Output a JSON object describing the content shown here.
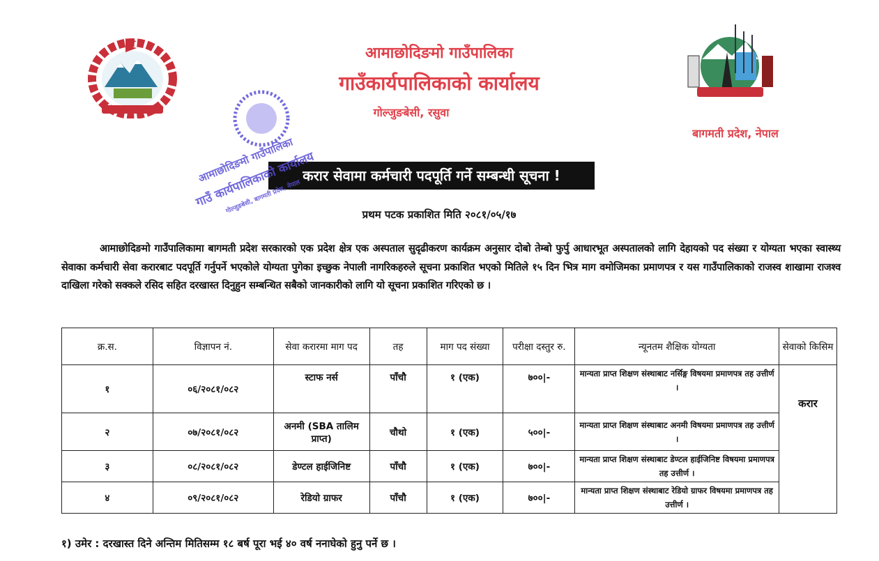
{
  "header": {
    "org_name": "आमाछोदिङमो गाउँपालिका",
    "office": "गाउँकार्यपालिकाको कार्यालय",
    "address": "गोल्जुङबेसी, रसुवा",
    "province": "बागमती प्रदेश, नेपाल",
    "colors": {
      "header_text": "#e0404a",
      "stamp": "#5a4fd6"
    }
  },
  "logos": {
    "left": "nepal-emblem",
    "right": "municipality-logo",
    "right_logo_text": "आमाछोदिङमो गाउँपालिका"
  },
  "stamp": {
    "line1": "आमाछोदिङमो गाउँपालिका",
    "line2": "गाउँ कार्यपालिकाको कार्यालय",
    "line3": "गोल्जुङबेसी, बागमती प्रदेश, नेपाल"
  },
  "notice": {
    "title": "करार सेवामा कर्मचारी पदपूर्ति गर्ने सम्बन्धी सूचना !",
    "published": "प्रथम पटक प्रकाशित मिति २०८१/०५/१७",
    "body": "आमाछोदिङमो गाउँपालिकामा बागमती प्रदेश सरकारको एक प्रदेश क्षेत्र एक अस्पताल सुदृढीकरण कार्यक्रम अनुसार दोबो तेम्बो फुर्पु आधारभूत अस्पतालको लागि देहायको पद संख्या र योग्यता भएका स्वास्थ्य सेवाका कर्मचारी सेवा करारबाट पदपूर्ति गर्नुपर्ने भएकोले योग्यता पुगेका इच्छुक नेपाली नागरिकहरुले सूचना प्रकाशित भएको मितिले १५ दिन भित्र माग वमोजिमका प्रमाणपत्र र यस गाउँपालिकाको राजस्व शाखामा राजश्व दाखिला गरेको सक्कले रसिद सहित दरखास्त दिनुहुन सम्बन्धित सबैको जानकारीको लागि यो सूचना प्रकाशित गरिएको छ ।"
  },
  "table": {
    "headers": [
      "क्र.स.",
      "विज्ञापन नं.",
      "सेवा करारमा माग पद",
      "तह",
      "माग पद संख्या",
      "परीक्षा दस्तुर रु.",
      "न्यूनतम शैक्षिक योग्यता",
      "सेवाको किसिम"
    ],
    "service_type": "करार",
    "rows": [
      {
        "sn": "१",
        "ad_no": "०६/२०८१/०८२",
        "post": "स्टाफ नर्स",
        "level": "पाँचौ",
        "count": "१ (एक)",
        "fee": "७००|-",
        "qualification": "मान्यता प्राप्त शिक्षण संस्थाबाट नर्सिङ्ग विषयमा प्रमाणपत्र तह उत्तीर्ण ।"
      },
      {
        "sn": "२",
        "ad_no": "०७/२०८१/०८२",
        "post": "अनमी (SBA तालिम प्राप्त)",
        "level": "चौथो",
        "count": "१ (एक)",
        "fee": "५००|-",
        "qualification": "मान्यता प्राप्त शिक्षण संस्थाबाट अनमी विषयमा प्रमाणपत्र तह उत्तीर्ण ।"
      },
      {
        "sn": "३",
        "ad_no": "०८/२०८१/०८२",
        "post": "डेण्टल हाईजिनिष्ट",
        "level": "पाँचौ",
        "count": "१ (एक)",
        "fee": "७००|-",
        "qualification": "मान्यता प्राप्त शिक्षण संस्थाबाट डेण्टल हाईजिनिष्ट विषयमा प्रमाणपत्र तह उत्तीर्ण ।"
      },
      {
        "sn": "४",
        "ad_no": "०९/२०८१/०८२",
        "post": "रेडियो ग्राफर",
        "level": "पाँचौ",
        "count": "१ (एक)",
        "fee": "७००|-",
        "qualification": "मान्यता प्राप्त शिक्षण संस्थाबाट रेडियो ग्राफर विषयमा प्रमाणपत्र तह उत्तीर्ण ।"
      }
    ]
  },
  "notes": [
    "१) उमेर : दरखास्त दिने अन्तिम मितिसम्म १८ बर्ष पूरा भई ४० वर्ष ननाघेको हुनु पर्ने छ ।"
  ]
}
